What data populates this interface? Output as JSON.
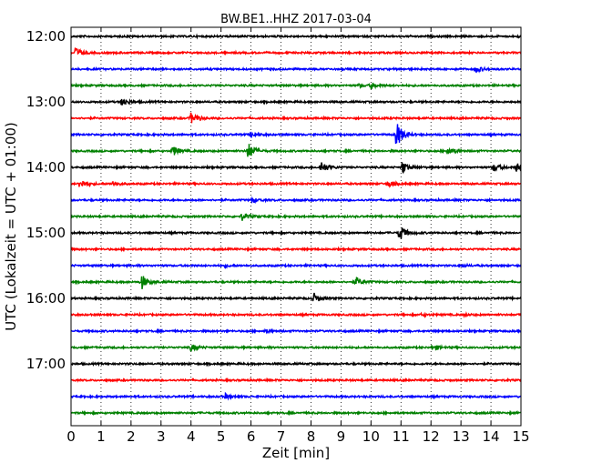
{
  "chart_data": {
    "type": "line",
    "title": "BW.BE1..HHZ 2017-03-04",
    "xlabel": "Zeit  [min]",
    "ylabel": "UTC (Lokalzeit = UTC + 01:00)",
    "xlim": [
      0,
      15
    ],
    "x_ticks": [
      0,
      1,
      2,
      3,
      4,
      5,
      6,
      7,
      8,
      9,
      10,
      11,
      12,
      13,
      14,
      15
    ],
    "x_tick_labels": [
      "0",
      "1",
      "2",
      "3",
      "4",
      "5",
      "6",
      "7",
      "8",
      "9",
      "10",
      "11",
      "12",
      "13",
      "14",
      "15"
    ],
    "y_tick_labels": [
      "12:00",
      "13:00",
      "14:00",
      "15:00",
      "16:00",
      "17:00"
    ],
    "y_tick_rows": [
      0,
      4,
      8,
      12,
      16,
      20
    ],
    "grid": "vertical dotted",
    "colors": [
      "#000000",
      "#ff0000",
      "#0000ff",
      "#008000"
    ],
    "traces": [
      {
        "start": "12:00",
        "color": "#000000",
        "events": [
          [
            14.95,
            0.15
          ]
        ]
      },
      {
        "start": "12:15",
        "color": "#ff0000",
        "events": [
          [
            0.15,
            0.6
          ]
        ]
      },
      {
        "start": "12:30",
        "color": "#0000ff",
        "events": [
          [
            13.5,
            0.4
          ]
        ]
      },
      {
        "start": "12:45",
        "color": "#008000",
        "events": [
          [
            10.0,
            0.35
          ],
          [
            9.6,
            0.15
          ]
        ]
      },
      {
        "start": "13:00",
        "color": "#000000",
        "events": [
          [
            1.7,
            0.5
          ]
        ]
      },
      {
        "start": "13:15",
        "color": "#ff0000",
        "events": [
          [
            4.0,
            0.65
          ]
        ]
      },
      {
        "start": "13:30",
        "color": "#0000ff",
        "events": [
          [
            10.85,
            1.6
          ],
          [
            6.0,
            0.3
          ]
        ]
      },
      {
        "start": "13:45",
        "color": "#008000",
        "events": [
          [
            3.4,
            0.6
          ],
          [
            5.9,
            1.0
          ],
          [
            12.55,
            0.5
          ]
        ]
      },
      {
        "start": "14:00",
        "color": "#000000",
        "events": [
          [
            8.35,
            0.7
          ],
          [
            11.05,
            0.7
          ],
          [
            14.1,
            0.5
          ],
          [
            14.85,
            0.5
          ]
        ]
      },
      {
        "start": "14:15",
        "color": "#ff0000",
        "events": [
          [
            0.3,
            0.6
          ],
          [
            1.4,
            0.3
          ],
          [
            10.6,
            0.4
          ]
        ]
      },
      {
        "start": "14:30",
        "color": "#0000ff",
        "events": [
          [
            6.05,
            0.3
          ]
        ]
      },
      {
        "start": "14:45",
        "color": "#008000",
        "events": [
          [
            5.7,
            0.45
          ]
        ]
      },
      {
        "start": "15:00",
        "color": "#000000",
        "events": [
          [
            10.95,
            1.0
          ]
        ]
      },
      {
        "start": "15:15",
        "color": "#ff0000",
        "events": []
      },
      {
        "start": "15:30",
        "color": "#0000ff",
        "events": [
          [
            5.1,
            0.15
          ],
          [
            13.1,
            0.1
          ]
        ]
      },
      {
        "start": "15:45",
        "color": "#008000",
        "events": [
          [
            2.35,
            0.9
          ],
          [
            9.5,
            0.55
          ]
        ]
      },
      {
        "start": "16:00",
        "color": "#000000",
        "events": [
          [
            8.1,
            0.6
          ]
        ]
      },
      {
        "start": "16:15",
        "color": "#ff0000",
        "events": [
          [
            11.7,
            0.15
          ],
          [
            13.1,
            0.1
          ]
        ]
      },
      {
        "start": "16:30",
        "color": "#0000ff",
        "events": [
          [
            6.5,
            0.15
          ]
        ]
      },
      {
        "start": "16:45",
        "color": "#008000",
        "events": [
          [
            4.0,
            0.4
          ],
          [
            12.05,
            0.35
          ]
        ]
      },
      {
        "start": "17:00",
        "color": "#000000",
        "events": []
      },
      {
        "start": "17:15",
        "color": "#ff0000",
        "events": []
      },
      {
        "start": "17:30",
        "color": "#0000ff",
        "events": [
          [
            5.15,
            0.3
          ]
        ]
      },
      {
        "start": "17:45",
        "color": "#008000",
        "events": []
      }
    ]
  }
}
